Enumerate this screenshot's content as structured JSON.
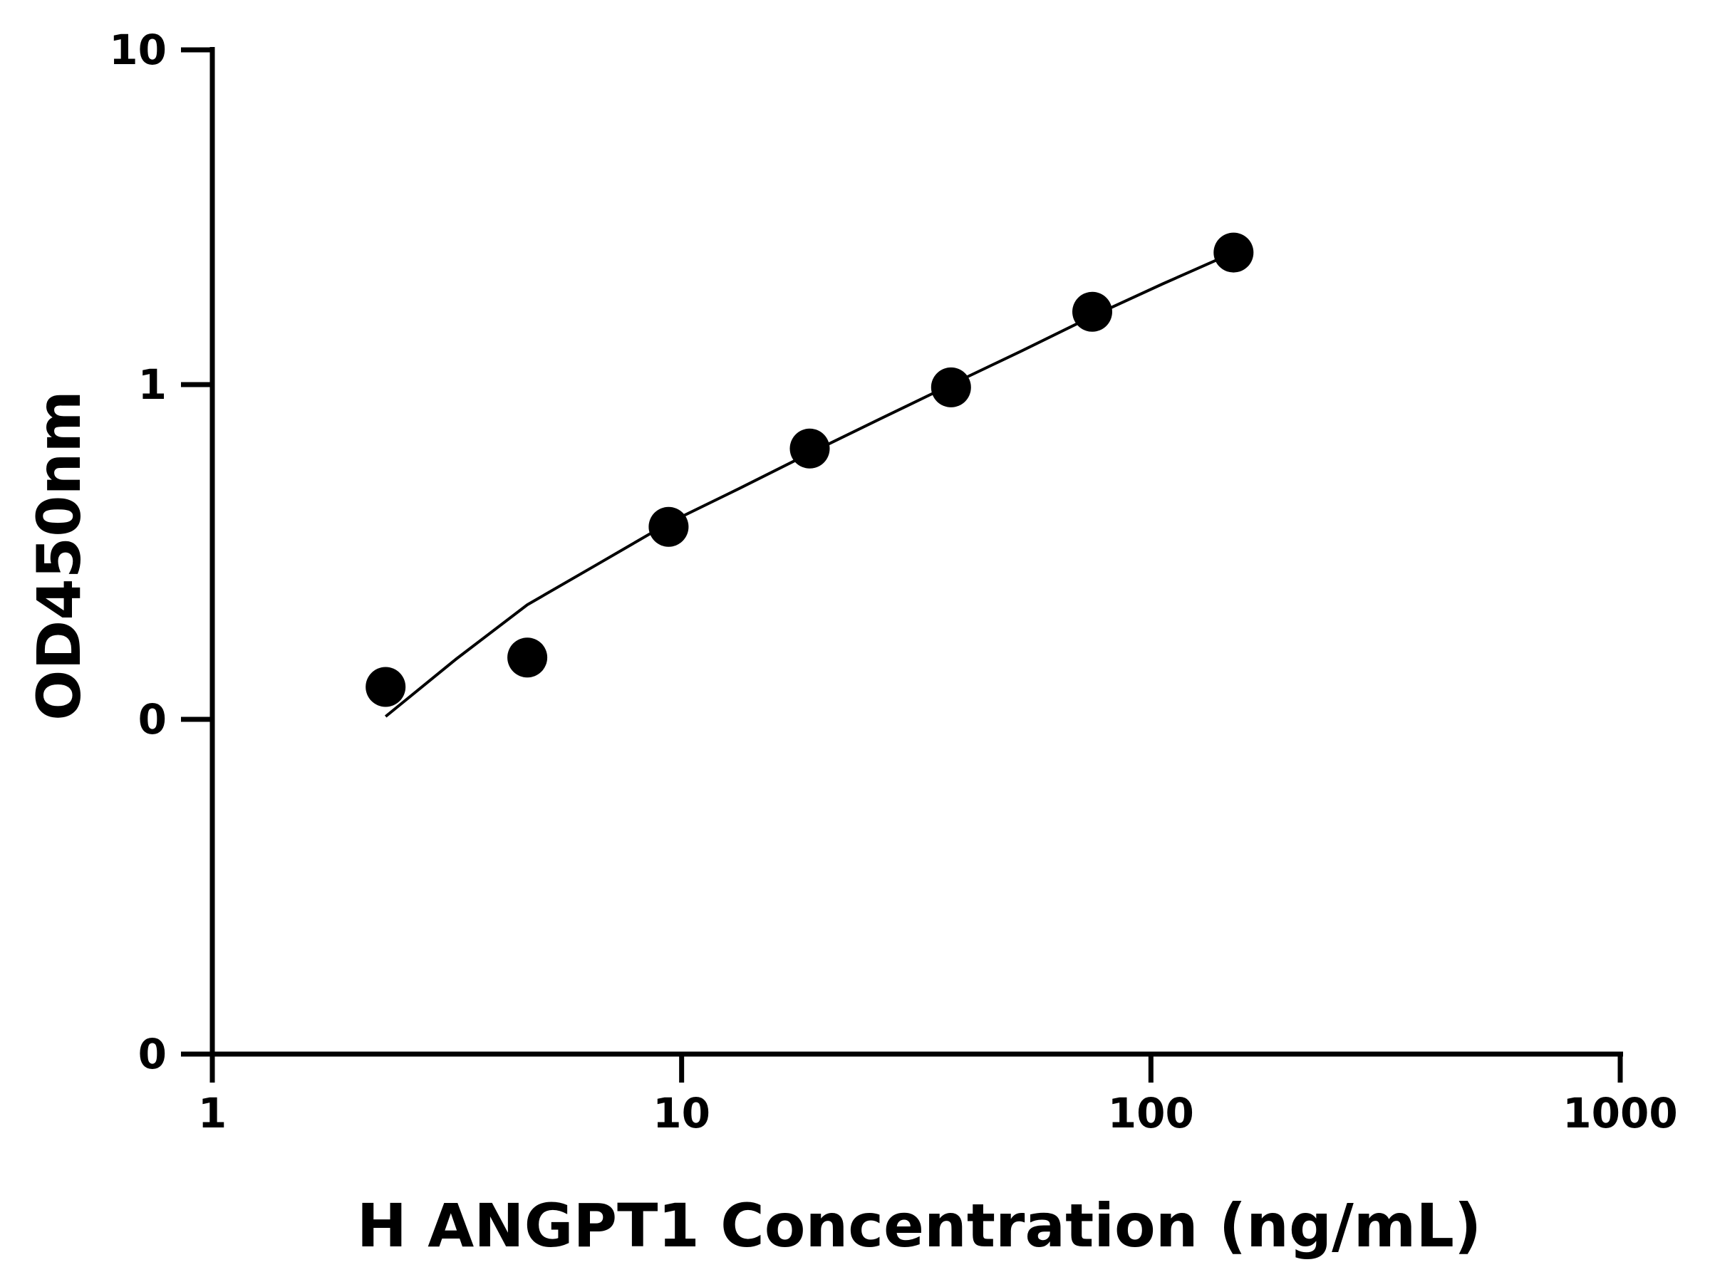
{
  "chart_data": {
    "type": "scatter",
    "title": "",
    "xlabel": "H ANGPT1 Concentration (ng/mL)",
    "ylabel": "OD450nm",
    "x_scale": "log",
    "y_scale": "log",
    "xlim": [
      1,
      1000
    ],
    "ylim": [
      0.01,
      10
    ],
    "x_ticks": [
      {
        "value": 1,
        "label": "1"
      },
      {
        "value": 10,
        "label": "10"
      },
      {
        "value": 100,
        "label": "100"
      },
      {
        "value": 1000,
        "label": "1000"
      }
    ],
    "y_ticks": [
      {
        "value": 0.01,
        "label": "0"
      },
      {
        "value": 0.1,
        "label": "0"
      },
      {
        "value": 1,
        "label": "1"
      },
      {
        "value": 10,
        "label": "10"
      }
    ],
    "grid": false,
    "legend": "none",
    "colors": {
      "marker": "#000000",
      "line": "#000000",
      "axis": "#000000"
    },
    "series": [
      {
        "points": [
          {
            "x": 2.34,
            "y": 0.125
          },
          {
            "x": 4.69,
            "y": 0.153
          },
          {
            "x": 9.38,
            "y": 0.376
          },
          {
            "x": 18.75,
            "y": 0.644
          },
          {
            "x": 37.5,
            "y": 0.981
          },
          {
            "x": 75,
            "y": 1.65
          },
          {
            "x": 150,
            "y": 2.48
          }
        ]
      }
    ],
    "fit_curve": [
      {
        "x": 2.34,
        "y": 0.102
      },
      {
        "x": 3.3,
        "y": 0.151
      },
      {
        "x": 4.69,
        "y": 0.22
      },
      {
        "x": 6.6,
        "y": 0.29
      },
      {
        "x": 9.38,
        "y": 0.386
      },
      {
        "x": 13.3,
        "y": 0.49
      },
      {
        "x": 18.75,
        "y": 0.624
      },
      {
        "x": 26.5,
        "y": 0.79
      },
      {
        "x": 37.5,
        "y": 1.0
      },
      {
        "x": 53,
        "y": 1.26
      },
      {
        "x": 75,
        "y": 1.6
      },
      {
        "x": 106,
        "y": 2.0
      },
      {
        "x": 150,
        "y": 2.48
      }
    ]
  }
}
